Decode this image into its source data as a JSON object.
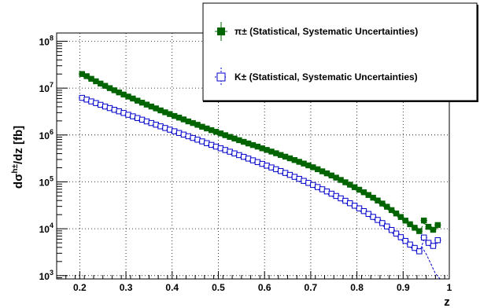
{
  "chart_data": {
    "type": "scatter",
    "ylabel": "dσ^{h±}/dz [fb]",
    "xlabel": "z",
    "xlim": [
      0.15,
      1.0
    ],
    "ylim": [
      850,
      150000000
    ],
    "yscale": "log",
    "grid": true,
    "legend_position": "top-right",
    "x_ticks": [
      "0.2",
      "0.3",
      "0.4",
      "0.5",
      "0.6",
      "0.7",
      "0.8",
      "0.9",
      "1"
    ],
    "y_ticks": [
      {
        "value": 1000,
        "mant": "10",
        "exp": "3"
      },
      {
        "value": 10000,
        "mant": "10",
        "exp": "4"
      },
      {
        "value": 100000,
        "mant": "10",
        "exp": "5"
      },
      {
        "value": 1000000,
        "mant": "10",
        "exp": "6"
      },
      {
        "value": 10000000,
        "mant": "10",
        "exp": "7"
      },
      {
        "value": 100000000,
        "mant": "10",
        "exp": "8"
      }
    ],
    "series": [
      {
        "name": "π± (Statistical, Systematic Uncertainties)",
        "marker": "filled-square",
        "color": "#006400",
        "x": [
          0.205,
          0.215,
          0.225,
          0.235,
          0.245,
          0.255,
          0.265,
          0.275,
          0.285,
          0.295,
          0.305,
          0.315,
          0.325,
          0.335,
          0.345,
          0.355,
          0.365,
          0.375,
          0.385,
          0.395,
          0.405,
          0.415,
          0.425,
          0.435,
          0.445,
          0.455,
          0.465,
          0.475,
          0.485,
          0.495,
          0.505,
          0.515,
          0.525,
          0.535,
          0.545,
          0.555,
          0.565,
          0.575,
          0.585,
          0.595,
          0.605,
          0.615,
          0.625,
          0.635,
          0.645,
          0.655,
          0.665,
          0.675,
          0.685,
          0.695,
          0.705,
          0.715,
          0.725,
          0.735,
          0.745,
          0.755,
          0.765,
          0.775,
          0.785,
          0.795,
          0.805,
          0.815,
          0.825,
          0.835,
          0.845,
          0.855,
          0.865,
          0.875,
          0.885,
          0.895,
          0.905,
          0.915,
          0.925,
          0.935,
          0.945,
          0.955,
          0.965,
          0.975
        ],
        "y": [
          20000000,
          18000000,
          15800000,
          14000000,
          12500000,
          11200000,
          10000000,
          9000000,
          8100000,
          7300000,
          6600000,
          6000000,
          5400000,
          4900000,
          4450000,
          4050000,
          3700000,
          3350000,
          3050000,
          2800000,
          2550000,
          2350000,
          2150000,
          1950000,
          1800000,
          1650000,
          1500000,
          1380000,
          1270000,
          1170000,
          1080000,
          990000,
          910000,
          840000,
          775000,
          715000,
          660000,
          610000,
          565000,
          520000,
          480000,
          443000,
          408000,
          375000,
          345000,
          318000,
          292000,
          268000,
          246000,
          225000,
          205000,
          186000,
          168000,
          152000,
          137000,
          123000,
          110000,
          98000,
          87000,
          77000,
          68000,
          60000,
          52500,
          46000,
          40000,
          34500,
          29500,
          25000,
          21200,
          17800,
          14900,
          12500,
          10500,
          8900,
          15000,
          11000,
          9500,
          12000
        ]
      },
      {
        "name": "K± (Statistical, Systematic Uncertainties)",
        "marker": "open-square",
        "color": "#0000cc",
        "x": [
          0.205,
          0.215,
          0.225,
          0.235,
          0.245,
          0.255,
          0.265,
          0.275,
          0.285,
          0.295,
          0.305,
          0.315,
          0.325,
          0.335,
          0.345,
          0.355,
          0.365,
          0.375,
          0.385,
          0.395,
          0.405,
          0.415,
          0.425,
          0.435,
          0.445,
          0.455,
          0.465,
          0.475,
          0.485,
          0.495,
          0.505,
          0.515,
          0.525,
          0.535,
          0.545,
          0.555,
          0.565,
          0.575,
          0.585,
          0.595,
          0.605,
          0.615,
          0.625,
          0.635,
          0.645,
          0.655,
          0.665,
          0.675,
          0.685,
          0.695,
          0.705,
          0.715,
          0.725,
          0.735,
          0.745,
          0.755,
          0.765,
          0.775,
          0.785,
          0.795,
          0.805,
          0.815,
          0.825,
          0.835,
          0.845,
          0.855,
          0.865,
          0.875,
          0.885,
          0.895,
          0.905,
          0.915,
          0.925,
          0.935,
          0.945,
          0.955,
          0.965,
          0.975
        ],
        "y": [
          6200000,
          5700000,
          5200000,
          4800000,
          4400000,
          4050000,
          3750000,
          3450000,
          3200000,
          2950000,
          2700000,
          2500000,
          2300000,
          2120000,
          1950000,
          1800000,
          1660000,
          1530000,
          1410000,
          1300000,
          1200000,
          1105000,
          1020000,
          940000,
          865000,
          795000,
          730000,
          670000,
          615000,
          565000,
          520000,
          478000,
          440000,
          405000,
          372000,
          342000,
          314000,
          288000,
          264000,
          242000,
          222000,
          203000,
          186000,
          170000,
          155000,
          141000,
          128000,
          116000,
          105000,
          95000,
          86000,
          77500,
          69500,
          62500,
          56000,
          50000,
          44500,
          39500,
          35000,
          31000,
          27200,
          23800,
          20700,
          17900,
          15400,
          13200,
          11200,
          9400,
          7900,
          6600,
          5500,
          4600,
          3900,
          3300,
          6500,
          5000,
          4300,
          5700
        ]
      }
    ]
  }
}
